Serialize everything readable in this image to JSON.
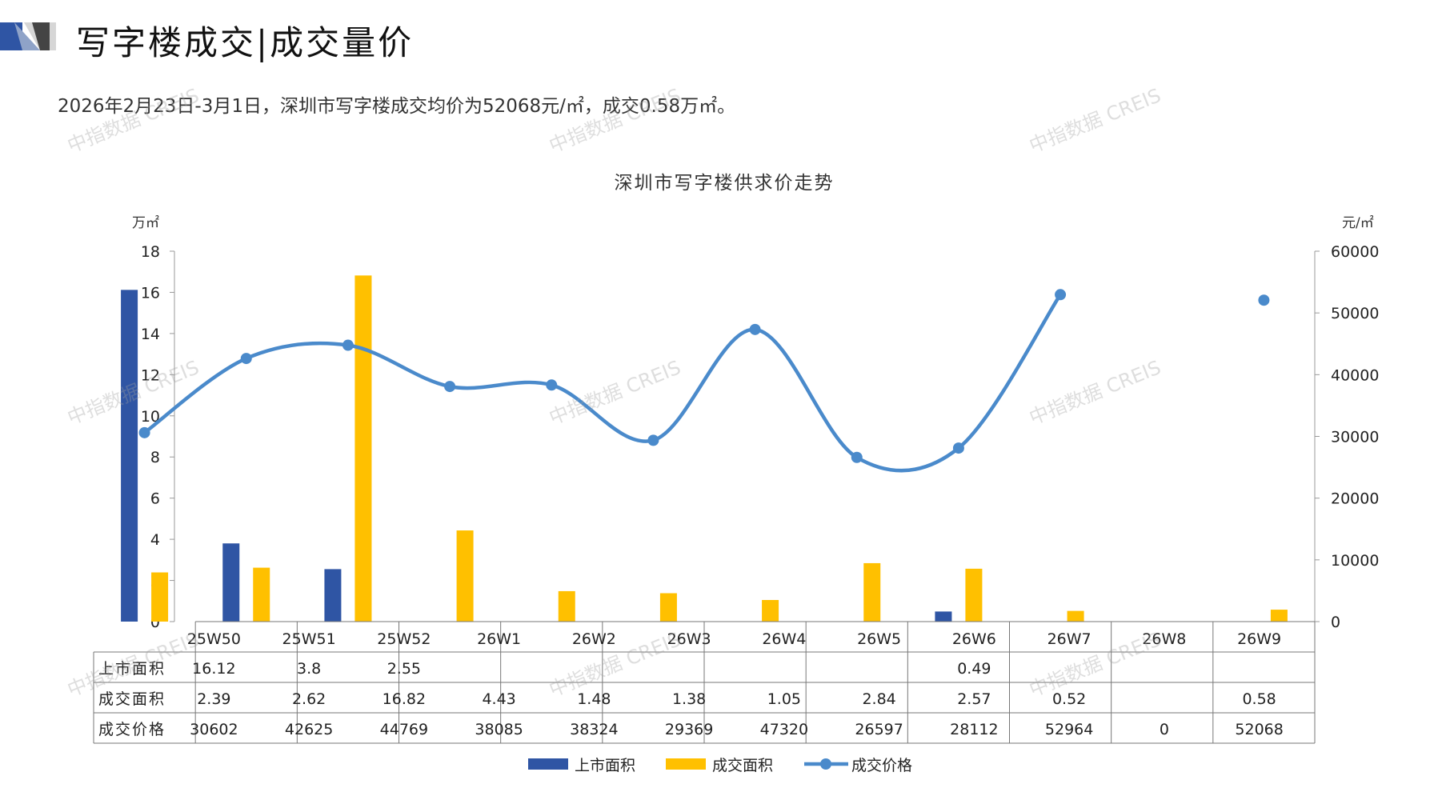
{
  "header": {
    "title": "写字楼成交|成交量价",
    "summary": "2026年2月23日-3月1日，深圳市写字楼成交均价为52068元/㎡，成交0.58万㎡。"
  },
  "watermark": "中指数据 CREIS",
  "colors": {
    "supply": "#2F55A4",
    "deal": "#FFC000",
    "price": "#4A8ACB"
  },
  "chart_data": {
    "type": "bar",
    "title": "深圳市写字楼供求价走势",
    "y_left_label": "万㎡",
    "y_right_label": "元/㎡",
    "ylim_left": [
      0,
      18
    ],
    "ylim_right": [
      0,
      60000
    ],
    "y_left_ticks": [
      "0",
      "2",
      "4",
      "6",
      "8",
      "10",
      "12",
      "14",
      "16",
      "18"
    ],
    "y_right_ticks": [
      "0",
      "10000",
      "20000",
      "30000",
      "40000",
      "50000",
      "60000"
    ],
    "categories": [
      "25W50",
      "25W51",
      "25W52",
      "26W1",
      "26W2",
      "26W3",
      "26W4",
      "26W5",
      "26W6",
      "26W7",
      "26W8",
      "26W9"
    ],
    "series": [
      {
        "name": "上市面积",
        "type": "bar",
        "axis": "left",
        "values": [
          16.12,
          3.8,
          2.55,
          null,
          null,
          null,
          null,
          null,
          0.49,
          null,
          null,
          null
        ],
        "labels": [
          "16.12",
          "3.8",
          "2.55",
          "",
          "",
          "",
          "",
          "",
          "0.49",
          "",
          "",
          ""
        ]
      },
      {
        "name": "成交面积",
        "type": "bar",
        "axis": "left",
        "values": [
          2.39,
          2.62,
          16.82,
          4.43,
          1.48,
          1.38,
          1.05,
          2.84,
          2.57,
          0.52,
          null,
          0.58
        ],
        "labels": [
          "2.39",
          "2.62",
          "16.82",
          "4.43",
          "1.48",
          "1.38",
          "1.05",
          "2.84",
          "2.57",
          "0.52",
          "",
          "0.58"
        ]
      },
      {
        "name": "成交价格",
        "type": "line",
        "axis": "right",
        "values": [
          30602,
          42625,
          44769,
          38085,
          38324,
          29369,
          47320,
          26597,
          28112,
          52964,
          0,
          52068
        ],
        "labels": [
          "30602",
          "42625",
          "44769",
          "38085",
          "38324",
          "29369",
          "47320",
          "26597",
          "28112",
          "52964",
          "0",
          "52068"
        ]
      }
    ],
    "legend_position": "bottom"
  }
}
